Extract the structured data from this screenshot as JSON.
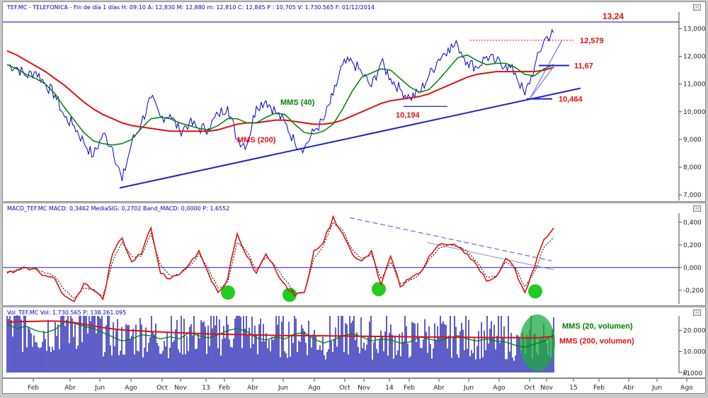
{
  "panels": {
    "price": {
      "header": "TEF.MC - TELEFONICA - Fin de día 1 días H: 09:10 A: 12,830 M: 12,880 m: 12,810 C: 12,845 P : 10,705 V: 1.730.565 F: 01/12/2014",
      "annotations": {
        "mms40": "MMS (40)",
        "mms200": "MMS (200)",
        "v13_24": "13,24",
        "v12_579": "12,579",
        "v11_67": "11,67",
        "v10_464": "10,464",
        "v10_194": "10,194"
      }
    },
    "macd": {
      "header": "MACD_TEF.MC  MACD: 0,3462  MediaSIG: 0,2702  Band_MACD: 0,0000  P: 1,6552"
    },
    "volume": {
      "header": "Vol_TEF.MC  Vol: 1.730.565  P: 138.261.095",
      "annotations": {
        "mms20v": "MMS (20, volumen)",
        "mms200v": "MMS (200, volumen)"
      },
      "scale_note": "x1000"
    }
  },
  "colors": {
    "price": "#0000cc",
    "mms40": "#008000",
    "mms200": "#e01010",
    "trend": "#2020c8",
    "macd": "#e01010",
    "signal": "#000000",
    "highlight": "#22cc22",
    "volume": "#1a1ab0"
  },
  "chart_data": [
    {
      "type": "line",
      "panel": "price",
      "ylim": [
        6.8,
        13.6
      ],
      "y_ticks": [
        "7,000",
        "8,000",
        "9,000",
        "10,000",
        "11,000",
        "12,000",
        "13,000"
      ],
      "y_tick_values": [
        7,
        8,
        9,
        10,
        11,
        12,
        13
      ],
      "x_labels": [
        "Feb",
        "Abr",
        "Jun",
        "Ago",
        "Oct",
        "Nov",
        "13",
        "Feb",
        "Abr",
        "Jun",
        "Ago",
        "Oct",
        "Nov",
        "14",
        "Feb",
        "Abr",
        "Jun",
        "Ago",
        "Oct",
        "Nov",
        "15",
        "Feb",
        "Abr",
        "Jun",
        "Ago"
      ],
      "series": [
        {
          "name": "TEF.MC",
          "values": [
            11.7,
            11.6,
            11.3,
            11.45,
            11.0,
            10.6,
            9.8,
            9.5,
            8.9,
            8.4,
            9.2,
            8.7,
            7.5,
            8.9,
            9.6,
            10.5,
            9.8,
            9.9,
            9.3,
            9.6,
            9.4,
            9.4,
            9.9,
            10.2,
            9.0,
            8.8,
            10.2,
            10.4,
            10.0,
            9.6,
            8.9,
            8.7,
            9.3,
            9.7,
            10.6,
            11.7,
            11.8,
            11.4,
            10.9,
            11.8,
            11.2,
            10.8,
            10.5,
            10.7,
            11.3,
            11.9,
            12.3,
            12.4,
            11.8,
            11.6,
            12.0,
            11.8,
            11.7,
            11.4,
            10.6,
            11.6,
            12.6,
            12.85
          ]
        },
        {
          "name": "MMS (40)",
          "values": [
            11.7,
            11.55,
            11.35,
            11.2,
            11.0,
            10.65,
            10.15,
            9.7,
            9.25,
            8.95,
            8.85,
            8.8,
            8.85,
            9.0,
            9.4,
            9.75,
            9.8,
            9.75,
            9.6,
            9.5,
            9.4,
            9.35,
            9.5,
            9.75,
            9.75,
            9.6,
            9.6,
            9.8,
            9.95,
            9.9,
            9.55,
            9.25,
            9.2,
            9.3,
            9.55,
            10.1,
            10.75,
            11.25,
            11.4,
            11.55,
            11.5,
            11.2,
            10.9,
            10.7,
            10.8,
            11.15,
            11.55,
            11.95,
            12.05,
            11.85,
            11.7,
            11.75,
            11.75,
            11.6,
            11.35,
            11.3,
            11.55,
            11.7
          ]
        },
        {
          "name": "MMS (200)",
          "values": [
            12.2,
            12.05,
            11.85,
            11.65,
            11.45,
            11.2,
            10.95,
            10.65,
            10.35,
            10.1,
            9.9,
            9.75,
            9.6,
            9.5,
            9.45,
            9.4,
            9.35,
            9.3,
            9.3,
            9.3,
            9.3,
            9.3,
            9.35,
            9.45,
            9.55,
            9.6,
            9.6,
            9.65,
            9.7,
            9.7,
            9.65,
            9.6,
            9.55,
            9.55,
            9.6,
            9.7,
            9.85,
            10.0,
            10.15,
            10.3,
            10.4,
            10.45,
            10.5,
            10.55,
            10.65,
            10.8,
            10.95,
            11.1,
            11.25,
            11.35,
            11.4,
            11.45,
            11.45,
            11.45,
            11.45,
            11.45,
            11.5,
            11.6
          ]
        }
      ]
    },
    {
      "type": "line",
      "panel": "macd",
      "ylim": [
        -0.32,
        0.48
      ],
      "y_ticks": [
        "0,400",
        "0,200",
        "0,000",
        "-0,200"
      ],
      "y_tick_values": [
        0.4,
        0.2,
        0.0,
        -0.2
      ],
      "series": [
        {
          "name": "MACD",
          "values": [
            -0.05,
            -0.02,
            0.0,
            -0.01,
            -0.07,
            -0.1,
            -0.25,
            -0.3,
            -0.14,
            -0.2,
            -0.28,
            0.12,
            0.26,
            0.05,
            0.12,
            0.35,
            -0.05,
            -0.1,
            -0.06,
            0.03,
            0.15,
            -0.05,
            -0.22,
            -0.1,
            0.3,
            0.1,
            -0.05,
            0.12,
            -0.02,
            -0.15,
            -0.25,
            -0.22,
            0.15,
            0.22,
            0.45,
            0.3,
            0.12,
            0.06,
            0.15,
            -0.15,
            0.1,
            -0.17,
            -0.1,
            -0.05,
            0.1,
            0.2,
            0.2,
            0.18,
            0.12,
            0.02,
            -0.12,
            -0.08,
            0.08,
            -0.02,
            -0.22,
            0.0,
            0.25,
            0.35
          ]
        },
        {
          "name": "MediaSIG",
          "values": [
            -0.04,
            -0.03,
            0.0,
            0.0,
            -0.05,
            -0.08,
            -0.2,
            -0.27,
            -0.18,
            -0.19,
            -0.25,
            0.05,
            0.22,
            0.1,
            0.1,
            0.3,
            0.02,
            -0.07,
            -0.06,
            0.01,
            0.12,
            -0.01,
            -0.18,
            -0.13,
            0.22,
            0.14,
            -0.02,
            0.09,
            0.01,
            -0.11,
            -0.22,
            -0.22,
            0.08,
            0.19,
            0.4,
            0.33,
            0.16,
            0.08,
            0.12,
            -0.1,
            0.05,
            -0.14,
            -0.11,
            -0.06,
            0.07,
            0.17,
            0.2,
            0.18,
            0.14,
            0.05,
            -0.08,
            -0.08,
            0.05,
            0.0,
            -0.17,
            -0.04,
            0.18,
            0.27
          ]
        }
      ]
    },
    {
      "type": "bar",
      "panel": "volume",
      "ylim": [
        0,
        27000
      ],
      "y_ticks": [
        "0",
        "10.000",
        "20.000"
      ],
      "y_tick_values": [
        0,
        10000,
        20000
      ],
      "series": [
        {
          "name": "MMS (20, volumen)",
          "values": [
            23000,
            21000,
            22000,
            20000,
            19000,
            20500,
            24000,
            23500,
            22000,
            21000,
            19000,
            17000,
            15000,
            16000,
            18000,
            17500,
            16000,
            17000,
            16000,
            19000,
            17500,
            16500,
            18000,
            20000,
            21000,
            19500,
            16500,
            15500,
            17000,
            16000,
            18500,
            19000,
            16000,
            14000,
            15500,
            17500,
            18500,
            17000,
            15000,
            16000,
            15500,
            14000,
            14500,
            17000,
            16000,
            15000,
            16500,
            17500,
            16000,
            15000,
            16000,
            15000,
            14500,
            13000,
            12000,
            13500,
            15000,
            18000
          ]
        },
        {
          "name": "MMS (200, volumen)",
          "values": [
            24000,
            24200,
            24300,
            24400,
            24500,
            24500,
            24300,
            23800,
            23000,
            22200,
            21400,
            20800,
            20300,
            20000,
            19800,
            19500,
            19300,
            19100,
            18900,
            18800,
            18600,
            18400,
            18300,
            18200,
            18100,
            18000,
            17900,
            17800,
            17700,
            17600,
            17600,
            17600,
            17500,
            17500,
            17400,
            17400,
            17300,
            17300,
            17200,
            17200,
            17100,
            17100,
            17000,
            17000,
            16900,
            16900,
            16800,
            16800,
            16800,
            16700,
            16700,
            16700,
            16600,
            16600,
            16500,
            16500,
            16800,
            17200
          ]
        }
      ]
    }
  ]
}
